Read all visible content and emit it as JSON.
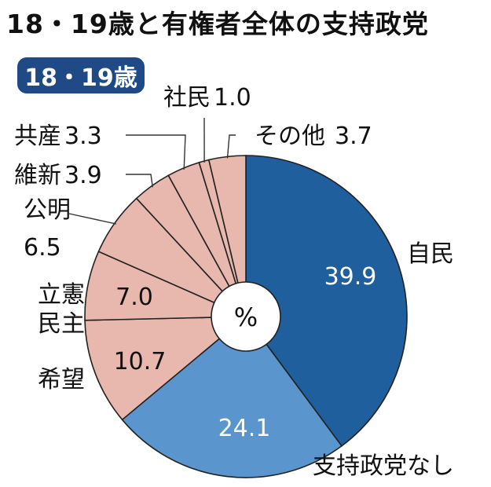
{
  "title": "18・19歳と有権者全体の支持政党",
  "badge": "18・19歳",
  "center_label": "%",
  "colors": {
    "dark_blue": "#1f5f9e",
    "light_blue": "#5b95cd",
    "pink": "#e8b7ae",
    "badge": "#1f4a86"
  },
  "chart_data": {
    "type": "pie",
    "title": "18・19歳と有権者全体の支持政党",
    "subtitle": "18・19歳",
    "unit": "%",
    "slices": [
      {
        "name": "自民",
        "value": 39.9,
        "value_label": "39.9"
      },
      {
        "name": "支持政党なし",
        "value": 24.1,
        "value_label": "24.1"
      },
      {
        "name": "希望",
        "value": 10.7,
        "value_label": "10.7"
      },
      {
        "name": "立憲民主",
        "value": 7.0,
        "value_label": "7.0"
      },
      {
        "name": "公明",
        "value": 6.5,
        "value_label": "6.5"
      },
      {
        "name": "維新",
        "value": 3.9,
        "value_label": "3.9"
      },
      {
        "name": "共産",
        "value": 3.3,
        "value_label": "3.3"
      },
      {
        "name": "社民",
        "value": 1.0,
        "value_label": "1.0"
      },
      {
        "name": "その他",
        "value": 3.7,
        "value_label": "3.7"
      }
    ]
  }
}
